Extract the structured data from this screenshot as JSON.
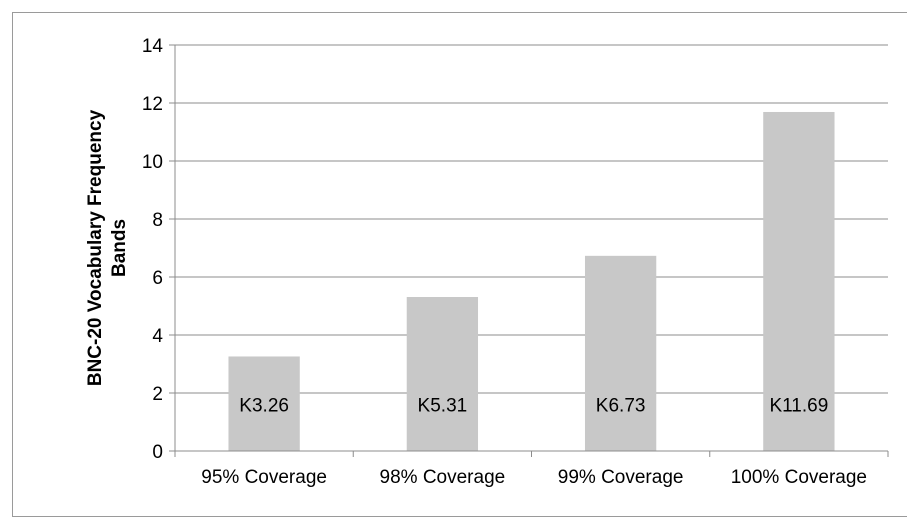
{
  "chart_data": {
    "type": "bar",
    "title": "",
    "xlabel": "",
    "ylabel": "BNC-20 Vocabulary Frequency Bands",
    "ylim": [
      0,
      14
    ],
    "yticks": [
      0,
      2,
      4,
      6,
      8,
      10,
      12,
      14
    ],
    "grid": true,
    "legend": "none",
    "categories": [
      "95% Coverage",
      "98% Coverage",
      "99% Coverage",
      "100% Coverage"
    ],
    "values": [
      3.26,
      5.31,
      6.73,
      11.69
    ],
    "data_labels": [
      "K3.26",
      "K5.31",
      "K6.73",
      "K11.69"
    ],
    "colors": {
      "bar": "#c8c8c8",
      "gridline": "#8c8c8c",
      "axis": "#8c8c8c",
      "frame": "#9a9a9a"
    }
  }
}
